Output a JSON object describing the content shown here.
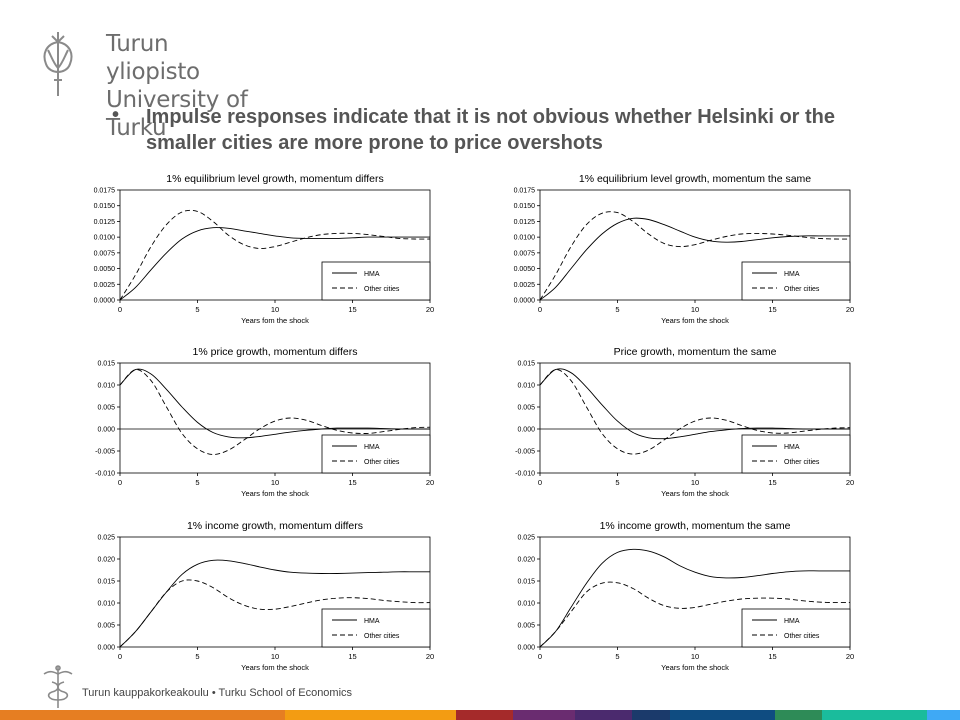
{
  "brand": {
    "line1": "Turun yliopisto",
    "line2": "University of Turku",
    "footer": "Turun  kauppakorkeakoulu  •  Turku  School of Economics"
  },
  "bullet": {
    "marker": "•",
    "text": "Impulse responses indicate that it is not obvious whether Helsinki or the smaller cities are more prone to price overshots"
  },
  "colors": {
    "text": "#555555",
    "logo": "#6d6d6d",
    "stripe": [
      "#e67e22",
      "#f39c12",
      "#a52a2a",
      "#6a2c70",
      "#4b2a6e",
      "#1b3a6b",
      "#0f4c81",
      "#2e8b57",
      "#1abc9c",
      "#3fa9f5"
    ]
  },
  "chart_data": [
    {
      "type": "line",
      "title": "1% equilibrium level growth, momentum differs",
      "xlabel": "Years fom the shock",
      "xlim": [
        0,
        20
      ],
      "ylim": [
        0,
        0.0175
      ],
      "xticks": [
        "0",
        "5",
        "10",
        "15",
        "20"
      ],
      "yticks": [
        "0.0000",
        "0.0025",
        "0.0050",
        "0.0075",
        "0.0100",
        "0.0125",
        "0.0150",
        "0.0175"
      ],
      "zero_line": false,
      "x": [
        0,
        1,
        2,
        3,
        4,
        5,
        6,
        7,
        8,
        9,
        10,
        11,
        12,
        13,
        14,
        15,
        16,
        17,
        18,
        19,
        20
      ],
      "series": [
        {
          "name": "HMA",
          "dash": false,
          "values": [
            0.0,
            0.002,
            0.0048,
            0.0075,
            0.0097,
            0.011,
            0.0115,
            0.0114,
            0.011,
            0.0106,
            0.0102,
            0.0099,
            0.0098,
            0.0098,
            0.0098,
            0.0099,
            0.01,
            0.01,
            0.01,
            0.01,
            0.01
          ]
        },
        {
          "name": "Other cities",
          "dash": true,
          "values": [
            0.0,
            0.004,
            0.0085,
            0.012,
            0.014,
            0.0141,
            0.0125,
            0.0103,
            0.0088,
            0.0082,
            0.0085,
            0.0092,
            0.0099,
            0.0104,
            0.0106,
            0.0106,
            0.0104,
            0.0101,
            0.0098,
            0.0097,
            0.0097
          ]
        }
      ]
    },
    {
      "type": "line",
      "title": "1% equilibrium level growth, momentum the same",
      "xlabel": "Years fom the shock",
      "xlim": [
        0,
        20
      ],
      "ylim": [
        0,
        0.0175
      ],
      "xticks": [
        "0",
        "5",
        "10",
        "15",
        "20"
      ],
      "yticks": [
        "0.0000",
        "0.0025",
        "0.0050",
        "0.0075",
        "0.0100",
        "0.0125",
        "0.0150",
        "0.0175"
      ],
      "zero_line": false,
      "x": [
        0,
        1,
        2,
        3,
        4,
        5,
        6,
        7,
        8,
        9,
        10,
        11,
        12,
        13,
        14,
        15,
        16,
        17,
        18,
        19,
        20
      ],
      "series": [
        {
          "name": "HMA",
          "dash": false,
          "values": [
            0.0,
            0.002,
            0.005,
            0.008,
            0.0105,
            0.0122,
            0.013,
            0.0128,
            0.012,
            0.011,
            0.01,
            0.0094,
            0.0092,
            0.0093,
            0.0096,
            0.0099,
            0.0101,
            0.0102,
            0.0102,
            0.0102,
            0.0102
          ]
        },
        {
          "name": "Other cities",
          "dash": true,
          "values": [
            0.0,
            0.004,
            0.0085,
            0.012,
            0.0138,
            0.0139,
            0.0125,
            0.0105,
            0.009,
            0.0085,
            0.0088,
            0.0095,
            0.0101,
            0.0105,
            0.0106,
            0.0105,
            0.0103,
            0.01,
            0.0098,
            0.0097,
            0.0097
          ]
        }
      ]
    },
    {
      "type": "line",
      "title": "1% price growth, momentum differs",
      "xlabel": "Years fom the shock",
      "xlim": [
        0,
        20
      ],
      "ylim": [
        -0.01,
        0.015
      ],
      "xticks": [
        "0",
        "5",
        "10",
        "15",
        "20"
      ],
      "yticks": [
        "-0.010",
        "-0.005",
        "0.000",
        "0.005",
        "0.010",
        "0.015"
      ],
      "zero_line": true,
      "x": [
        0,
        1,
        2,
        3,
        4,
        5,
        6,
        7,
        8,
        9,
        10,
        11,
        12,
        13,
        14,
        15,
        16,
        17,
        18,
        19,
        20
      ],
      "series": [
        {
          "name": "HMA",
          "dash": false,
          "values": [
            0.01,
            0.0135,
            0.0125,
            0.009,
            0.005,
            0.0015,
            -0.0008,
            -0.0018,
            -0.002,
            -0.0017,
            -0.0012,
            -0.0007,
            -0.0003,
            0.0,
            0.0002,
            0.0002,
            0.0002,
            0.0001,
            0.0,
            0.0,
            0.0
          ]
        },
        {
          "name": "Other cities",
          "dash": true,
          "values": [
            0.01,
            0.0135,
            0.011,
            0.005,
            -0.001,
            -0.0045,
            -0.0058,
            -0.0048,
            -0.0025,
            0.0,
            0.0018,
            0.0025,
            0.002,
            0.0008,
            -0.0003,
            -0.0009,
            -0.001,
            -0.0006,
            -0.0001,
            0.0003,
            0.0004
          ]
        }
      ]
    },
    {
      "type": "line",
      "title": "Price growth, momentum the same",
      "xlabel": "Years fom the shock",
      "xlim": [
        0,
        20
      ],
      "ylim": [
        -0.01,
        0.015
      ],
      "xticks": [
        "0",
        "5",
        "10",
        "15",
        "20"
      ],
      "yticks": [
        "-0.010",
        "-0.005",
        "0.000",
        "0.005",
        "0.010",
        "0.015"
      ],
      "zero_line": true,
      "x": [
        0,
        1,
        2,
        3,
        4,
        5,
        6,
        7,
        8,
        9,
        10,
        11,
        12,
        13,
        14,
        15,
        16,
        17,
        18,
        19,
        20
      ],
      "series": [
        {
          "name": "HMA",
          "dash": false,
          "values": [
            0.01,
            0.0135,
            0.0128,
            0.0095,
            0.0055,
            0.0018,
            -0.0008,
            -0.002,
            -0.0022,
            -0.0018,
            -0.0012,
            -0.0006,
            -0.0002,
            0.0001,
            0.0002,
            0.0002,
            0.0001,
            0.0,
            0.0,
            0.0,
            0.0
          ]
        },
        {
          "name": "Other cities",
          "dash": true,
          "values": [
            0.01,
            0.0135,
            0.011,
            0.005,
            -0.001,
            -0.0045,
            -0.0057,
            -0.0048,
            -0.0025,
            0.0,
            0.0018,
            0.0025,
            0.002,
            0.0008,
            -0.0003,
            -0.0009,
            -0.0009,
            -0.0005,
            -0.0001,
            0.0002,
            0.0003
          ]
        }
      ]
    },
    {
      "type": "line",
      "title": "1% income growth, momentum differs",
      "xlabel": "Years fom the shock",
      "xlim": [
        0,
        20
      ],
      "ylim": [
        0,
        0.025
      ],
      "xticks": [
        "0",
        "5",
        "10",
        "15",
        "20"
      ],
      "yticks": [
        "0.000",
        "0.005",
        "0.010",
        "0.015",
        "0.020",
        "0.025"
      ],
      "zero_line": false,
      "x": [
        0,
        1,
        2,
        3,
        4,
        5,
        6,
        7,
        8,
        9,
        10,
        11,
        12,
        13,
        14,
        15,
        16,
        17,
        18,
        19,
        20
      ],
      "series": [
        {
          "name": "HMA",
          "dash": false,
          "values": [
            0.0,
            0.0035,
            0.008,
            0.0125,
            0.0165,
            0.0188,
            0.0197,
            0.0196,
            0.019,
            0.0182,
            0.0175,
            0.017,
            0.0168,
            0.0167,
            0.0167,
            0.0168,
            0.0169,
            0.017,
            0.0171,
            0.0171,
            0.0171
          ]
        },
        {
          "name": "Other cities",
          "dash": true,
          "values": [
            0.0,
            0.0035,
            0.008,
            0.0125,
            0.015,
            0.015,
            0.0135,
            0.0112,
            0.0095,
            0.0086,
            0.0086,
            0.0092,
            0.01,
            0.0107,
            0.0111,
            0.0112,
            0.011,
            0.0106,
            0.0103,
            0.0101,
            0.0101
          ]
        }
      ]
    },
    {
      "type": "line",
      "title": "1% income growth, momentum the same",
      "xlabel": "Years fom the shock",
      "xlim": [
        0,
        20
      ],
      "ylim": [
        0,
        0.025
      ],
      "xticks": [
        "0",
        "5",
        "10",
        "15",
        "20"
      ],
      "yticks": [
        "0.000",
        "0.005",
        "0.010",
        "0.015",
        "0.020",
        "0.025"
      ],
      "zero_line": false,
      "x": [
        0,
        1,
        2,
        3,
        4,
        5,
        6,
        7,
        8,
        9,
        10,
        11,
        12,
        13,
        14,
        15,
        16,
        17,
        18,
        19,
        20
      ],
      "series": [
        {
          "name": "HMA",
          "dash": false,
          "values": [
            0.0,
            0.0035,
            0.009,
            0.0145,
            0.019,
            0.0215,
            0.0222,
            0.0218,
            0.0205,
            0.0185,
            0.017,
            0.016,
            0.0157,
            0.0158,
            0.0162,
            0.0167,
            0.0171,
            0.0173,
            0.0173,
            0.0173,
            0.0173
          ]
        },
        {
          "name": "Other cities",
          "dash": true,
          "values": [
            0.0,
            0.0035,
            0.008,
            0.0125,
            0.0145,
            0.0146,
            0.0133,
            0.0111,
            0.0094,
            0.0088,
            0.009,
            0.0097,
            0.0104,
            0.0109,
            0.0111,
            0.0111,
            0.0109,
            0.0105,
            0.0102,
            0.0101,
            0.0101
          ]
        }
      ]
    }
  ]
}
